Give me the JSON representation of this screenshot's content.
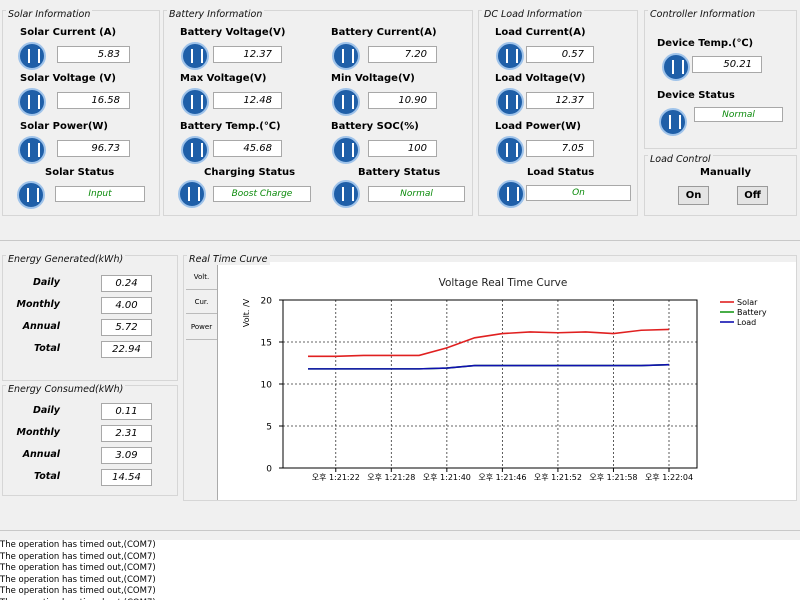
{
  "solar": {
    "title": "Solar Information",
    "fields": [
      {
        "label": "Solar Current (A)",
        "value": "5.83"
      },
      {
        "label": "Solar Voltage (V)",
        "value": "16.58"
      },
      {
        "label": "Solar Power(W)",
        "value": "96.73"
      }
    ],
    "status_label": "Solar Status",
    "status": "Input"
  },
  "battery": {
    "title": "Battery Information",
    "fields": [
      {
        "label": "Battery Voltage(V)",
        "value": "12.37"
      },
      {
        "label": "Battery Current(A)",
        "value": "7.20"
      },
      {
        "label": "Max Voltage(V)",
        "value": "12.48"
      },
      {
        "label": "Min Voltage(V)",
        "value": "10.90"
      },
      {
        "label": "Battery Temp.(℃)",
        "value": "45.68"
      },
      {
        "label": "Battery SOC(%)",
        "value": "100"
      }
    ],
    "charging_label": "Charging Status",
    "charging": "Boost Charge",
    "status_label": "Battery Status",
    "status": "Normal"
  },
  "dc_load": {
    "title": "DC Load Information",
    "fields": [
      {
        "label": "Load Current(A)",
        "value": "0.57"
      },
      {
        "label": "Load Voltage(V)",
        "value": "12.37"
      },
      {
        "label": "Load Power(W)",
        "value": "7.05"
      }
    ],
    "status_label": "Load Status",
    "status": "On"
  },
  "controller": {
    "title": "Controller Information",
    "fields": [
      {
        "label": "Device Temp.(℃)",
        "value": "50.21"
      }
    ],
    "status_label": "Device Status",
    "status": "Normal"
  },
  "load_control": {
    "title": "Load Control",
    "mode": "Manually",
    "buttons": [
      "On",
      "Off"
    ]
  },
  "energy_generated": {
    "title": "Energy Generated(kWh)",
    "rows": [
      {
        "label": "Daily",
        "value": "0.24"
      },
      {
        "label": "Monthly",
        "value": "4.00"
      },
      {
        "label": "Annual",
        "value": "5.72"
      },
      {
        "label": "Total",
        "value": "22.94"
      }
    ]
  },
  "energy_consumed": {
    "title": "Energy Consumed(kWh)",
    "rows": [
      {
        "label": "Daily",
        "value": "0.11"
      },
      {
        "label": "Monthly",
        "value": "2.31"
      },
      {
        "label": "Annual",
        "value": "3.09"
      },
      {
        "label": "Total",
        "value": "14.54"
      }
    ]
  },
  "curve": {
    "title": "Real Time Curve",
    "tabs": [
      "Volt.",
      "Cur.",
      "Power"
    ]
  },
  "chart_data": {
    "type": "line",
    "title": "Voltage Real Time Curve",
    "y_label": "Volt. /V",
    "categories": [
      null,
      "오후 1:21:22",
      null,
      "오후 1:21:28",
      null,
      "오후 1:21:40",
      null,
      "오후 1:21:46",
      null,
      "오후 1:21:52",
      null,
      "오후 1:21:58",
      null,
      "오후 1:22:04"
    ],
    "series": [
      {
        "name": "Solar",
        "color": "#e02020",
        "values": [
          13.3,
          13.3,
          13.4,
          13.4,
          13.4,
          14.3,
          15.5,
          16.0,
          16.2,
          16.1,
          16.2,
          16.0,
          16.4,
          16.5
        ]
      },
      {
        "name": "Battery",
        "color": "#1a9a1a",
        "values": [
          11.8,
          11.8,
          11.8,
          11.8,
          11.8,
          11.9,
          12.2,
          12.2,
          12.2,
          12.2,
          12.2,
          12.2,
          12.2,
          12.3
        ]
      },
      {
        "name": "Load",
        "color": "#1010b0",
        "values": [
          11.8,
          11.8,
          11.8,
          11.8,
          11.8,
          11.9,
          12.2,
          12.2,
          12.2,
          12.2,
          12.2,
          12.2,
          12.2,
          12.3
        ]
      }
    ],
    "ylim": [
      0,
      20
    ],
    "yticks": [
      0,
      5,
      10,
      15,
      20
    ],
    "grid": true,
    "legend": "upper right"
  },
  "log": [
    "The operation has timed out,(COM7)",
    "The operation has timed out,(COM7)",
    "The operation has timed out,(COM7)",
    "The operation has timed out,(COM7)",
    "The operation has timed out,(COM7)",
    "The operation has timed out,(COM7)"
  ]
}
